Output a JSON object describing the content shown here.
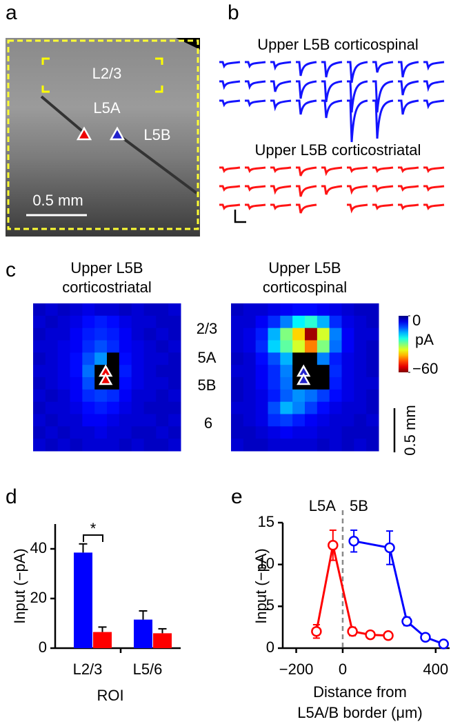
{
  "panel_labels": [
    "a",
    "b",
    "c",
    "d",
    "e"
  ],
  "image": {
    "labels": [
      "L2/3",
      "L5A",
      "L5B"
    ],
    "scale_bar": "0.5 mm"
  },
  "layer_labels": [
    "2/3",
    "5A",
    "5B",
    "6"
  ],
  "map_scale_bar": "0.5 mm",
  "colorbar": {
    "clim": [
      -60,
      0
    ],
    "ticks": [
      0,
      {
        "value": -60,
        "label": "−60"
      }
    ],
    "unit": "pA"
  },
  "chart_data": [
    {
      "type": "traces",
      "title": "Upper L5B corticospinal",
      "color": "#1414ff",
      "peaks": [
        [
          6,
          6,
          8,
          20,
          22,
          30,
          15,
          22,
          8
        ],
        [
          8,
          8,
          15,
          25,
          30,
          45,
          45,
          20,
          10
        ],
        [
          6,
          6,
          10,
          20,
          25,
          60,
          55,
          20,
          8
        ]
      ]
    },
    {
      "type": "traces",
      "title": "Upper L5B corticostriatal",
      "color": "#ff1414",
      "peaks": [
        [
          5,
          5,
          5,
          12,
          8,
          5,
          5,
          5,
          5
        ],
        [
          5,
          5,
          8,
          15,
          12,
          8,
          6,
          5,
          5
        ],
        [
          5,
          5,
          5,
          12,
          null,
          8,
          5,
          5,
          5
        ]
      ]
    },
    {
      "type": "heatmap",
      "title": [
        "Upper L5B",
        "corticostriatal"
      ],
      "values": [
        [
          -4,
          -5,
          -4,
          -5,
          -6,
          -5,
          -5,
          -4,
          -5,
          -4,
          -4,
          -5
        ],
        [
          -5,
          -4,
          -5,
          -6,
          -8,
          -9,
          -8,
          -6,
          -5,
          -5,
          -4,
          -4
        ],
        [
          -4,
          -5,
          -5,
          -7,
          -9,
          -10,
          -9,
          -7,
          -5,
          -4,
          -5,
          -4
        ],
        [
          -5,
          -5,
          -6,
          -7,
          -10,
          -12,
          -10,
          -7,
          -6,
          -5,
          -4,
          -5
        ],
        [
          -4,
          -5,
          -6,
          -8,
          -12,
          -16,
          null,
          -8,
          -6,
          -5,
          -5,
          -4
        ],
        [
          -5,
          -5,
          -6,
          -8,
          -14,
          null,
          null,
          -9,
          -6,
          -5,
          -4,
          -4
        ],
        [
          -4,
          -5,
          -6,
          -7,
          -12,
          null,
          null,
          -8,
          -6,
          -5,
          -5,
          -4
        ],
        [
          -5,
          -4,
          -5,
          -7,
          -10,
          -11,
          -10,
          -7,
          -5,
          -5,
          -4,
          -5
        ],
        [
          -4,
          -5,
          -5,
          -6,
          -8,
          -9,
          -8,
          -6,
          -5,
          -4,
          -4,
          -4
        ],
        [
          -5,
          -4,
          -5,
          -5,
          -7,
          -7,
          -6,
          -5,
          -5,
          -5,
          -4,
          -5
        ],
        [
          -4,
          -5,
          -4,
          -5,
          -5,
          -6,
          -5,
          -5,
          -4,
          -4,
          -5,
          -4
        ],
        [
          -5,
          -4,
          -5,
          -4,
          -5,
          -5,
          -5,
          -4,
          -5,
          -4,
          -4,
          -5
        ]
      ]
    },
    {
      "type": "heatmap",
      "title": [
        "Upper L5B",
        "corticospinal"
      ],
      "values": [
        [
          -4,
          -5,
          -5,
          -6,
          -7,
          -8,
          -8,
          -7,
          -6,
          -5,
          -4,
          -4
        ],
        [
          -5,
          -5,
          -7,
          -10,
          -15,
          -22,
          -25,
          -18,
          -10,
          -6,
          -5,
          -4
        ],
        [
          -5,
          -6,
          -9,
          -18,
          -30,
          -40,
          -58,
          -35,
          -15,
          -7,
          -5,
          -5
        ],
        [
          -5,
          -6,
          -10,
          -20,
          -28,
          -35,
          -45,
          -30,
          -14,
          -7,
          -5,
          -4
        ],
        [
          -4,
          -5,
          -8,
          -12,
          -18,
          null,
          null,
          -15,
          -9,
          -6,
          -5,
          -4
        ],
        [
          -5,
          -5,
          -7,
          -10,
          -15,
          null,
          null,
          null,
          -10,
          -6,
          -5,
          -4
        ],
        [
          -4,
          -5,
          -7,
          -10,
          -14,
          null,
          null,
          null,
          -9,
          -6,
          -5,
          -5
        ],
        [
          -4,
          -5,
          -6,
          -9,
          -13,
          -16,
          -14,
          -11,
          -8,
          -6,
          -5,
          -4
        ],
        [
          -5,
          -5,
          -6,
          -12,
          -18,
          -15,
          -11,
          -8,
          -6,
          -5,
          -5,
          -4
        ],
        [
          -4,
          -5,
          -6,
          -10,
          -11,
          -9,
          -7,
          -6,
          -5,
          -5,
          -4,
          -5
        ],
        [
          -4,
          -4,
          -5,
          -6,
          -7,
          -6,
          -6,
          -5,
          -5,
          -4,
          -4,
          -4
        ],
        [
          -5,
          -4,
          -4,
          -5,
          -5,
          -5,
          -5,
          -4,
          -5,
          -4,
          -5,
          -4
        ]
      ]
    },
    {
      "type": "bar",
      "categories": [
        "L2/3",
        "L5/6"
      ],
      "ylabel": "Input (−pA)",
      "xlabel": "ROI",
      "ylim": [
        0,
        50
      ],
      "yticks": [
        0,
        20,
        40
      ],
      "annotation": "*",
      "series": [
        {
          "color": "#0000ff",
          "values": [
            38.5,
            11.5
          ],
          "errors": [
            3.5,
            3.5
          ]
        },
        {
          "color": "#ff0000",
          "values": [
            6.5,
            6
          ],
          "errors": [
            2,
            1.8
          ]
        }
      ]
    },
    {
      "type": "line",
      "ylabel": "Input (−pA)",
      "xlabel": [
        "Distance from",
        "L5A/B border (μm)"
      ],
      "annotations": [
        "L5A",
        "5B"
      ],
      "border": 0,
      "xlim": [
        -258,
        460
      ],
      "xticks": [
        {
          "value": -200,
          "label": "−200"
        },
        0,
        400
      ],
      "ylim": [
        0,
        15
      ],
      "yticks": [
        0,
        5,
        10,
        15
      ],
      "series": [
        {
          "color": "#ff0000",
          "x": [
            -113,
            -42,
            42,
            119,
            196
          ],
          "values": [
            2,
            12.3,
            2,
            1.6,
            1.5
          ],
          "errors": [
            0.8,
            1.8,
            0.5,
            0.3,
            0.3
          ]
        },
        {
          "color": "#0000ff",
          "x": [
            48,
            202,
            276,
            356,
            434
          ],
          "values": [
            12.8,
            12,
            3.2,
            1.3,
            0.5
          ],
          "errors": [
            1.3,
            2,
            0.5,
            0.3,
            0.3
          ]
        }
      ]
    }
  ]
}
